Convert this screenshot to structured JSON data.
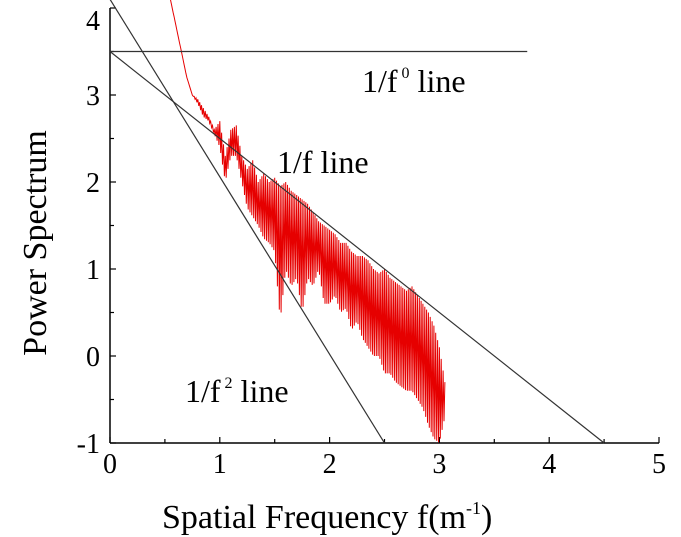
{
  "chart_data": {
    "type": "line",
    "xlabel": "Spatial  Frequency f(m",
    "xlabel_sup": "-1",
    "xlabel_end": ")",
    "ylabel": "Power Spectrum",
    "xlim": [
      0,
      5
    ],
    "ylim": [
      -1,
      4
    ],
    "x_ticks": [
      "0",
      "1",
      "2",
      "3",
      "4",
      "5"
    ],
    "y_ticks": [
      "-1",
      "0",
      "1",
      "2",
      "3",
      "4"
    ],
    "grid": false,
    "spectrum_color": "#e60000",
    "reference_lines": [
      {
        "label_main": "1/f",
        "label_sup": "0",
        "label_end": " line",
        "points": [
          [
            0,
            3.5
          ],
          [
            3.8,
            3.5
          ]
        ]
      },
      {
        "label_main": "1/f line",
        "label_sup": "",
        "label_end": "",
        "points": [
          [
            0,
            3.5
          ],
          [
            4.5,
            -1.0
          ]
        ]
      },
      {
        "label_main": "1/f",
        "label_sup": "2",
        "label_end": " line",
        "points": [
          [
            0,
            4.1
          ],
          [
            2.5,
            -1.0
          ]
        ]
      }
    ],
    "spectrum": {
      "x": [
        0.55,
        0.6,
        0.65,
        0.7,
        0.75,
        0.8,
        0.85,
        0.9,
        0.95,
        1.0,
        1.05,
        1.1,
        1.15,
        1.2,
        1.25,
        1.3,
        1.35,
        1.4,
        1.45,
        1.5,
        1.55,
        1.6,
        1.65,
        1.7,
        1.75,
        1.8,
        1.85,
        1.9,
        1.95,
        2.0,
        2.05,
        2.1,
        2.15,
        2.2,
        2.25,
        2.3,
        2.35,
        2.4,
        2.45,
        2.5,
        2.55,
        2.6,
        2.65,
        2.7,
        2.75,
        2.8,
        2.85,
        2.9,
        2.95,
        3.0,
        3.05
      ],
      "upper": [
        4.1,
        3.8,
        3.5,
        3.2,
        3.0,
        2.95,
        2.85,
        2.75,
        2.6,
        2.7,
        2.3,
        2.6,
        2.65,
        2.3,
        2.15,
        2.25,
        2.0,
        2.1,
        2.0,
        2.05,
        1.95,
        2.0,
        1.9,
        1.85,
        1.8,
        1.75,
        1.65,
        1.55,
        1.5,
        1.45,
        1.4,
        1.3,
        1.3,
        1.2,
        1.15,
        1.15,
        1.1,
        1.0,
        0.95,
        1.0,
        0.9,
        0.85,
        0.8,
        0.75,
        0.8,
        0.7,
        0.6,
        0.5,
        0.35,
        0.1,
        -0.3
      ],
      "lower": [
        4.1,
        3.8,
        3.5,
        3.2,
        3.0,
        2.9,
        2.75,
        2.7,
        2.55,
        2.4,
        2.0,
        2.3,
        2.3,
        2.0,
        1.7,
        1.6,
        1.5,
        1.35,
        1.3,
        1.2,
        0.4,
        1.0,
        0.8,
        0.9,
        0.5,
        0.9,
        0.8,
        1.0,
        0.6,
        0.6,
        0.7,
        0.5,
        0.55,
        0.3,
        0.4,
        0.2,
        0.1,
        0.0,
        0.0,
        -0.2,
        -0.2,
        -0.3,
        -0.35,
        -0.4,
        -0.4,
        -0.5,
        -0.6,
        -0.8,
        -0.95,
        -1.0,
        -0.7
      ]
    }
  }
}
